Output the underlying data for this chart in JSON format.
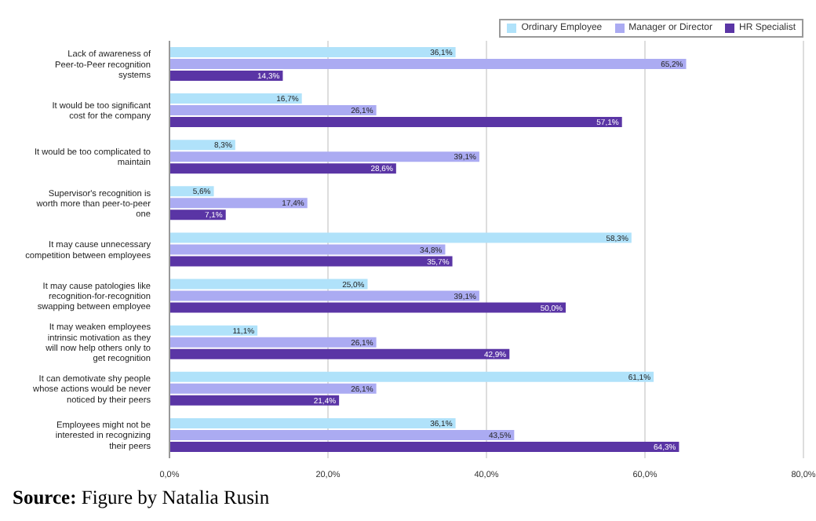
{
  "chart_data": {
    "type": "bar",
    "orientation": "horizontal",
    "categories": [
      "Lack of awareness of Peer-to-Peer recognition systems",
      "It would be too significant cost for the company",
      "It would be too complicated to maintain",
      "Supervisor's recognition is worth more than peer-to-peer one",
      "It may cause unnecessary competition between employees",
      "It may cause patologies like recognition-for-recognition swapping between employee",
      "It may weaken employees intrinsic motivation as they will now help others only to get recognition",
      "It can demotivate shy people whose actions would be never noticed by their peers",
      "Employees might not be interested in recognizing their peers"
    ],
    "series": [
      {
        "name": "Ordinary Employee",
        "color": "#b0e2fa",
        "values": [
          36.1,
          16.7,
          8.3,
          5.6,
          58.3,
          25.0,
          11.1,
          61.1,
          36.1
        ],
        "value_labels": [
          "36,1%",
          "16,7%",
          "8,3%",
          "5,6%",
          "58,3%",
          "25,0%",
          "11,1%",
          "61,1%",
          "36,1%"
        ]
      },
      {
        "name": "Manager or Director",
        "color": "#ababf2",
        "values": [
          65.2,
          26.1,
          39.1,
          17.4,
          34.8,
          39.1,
          26.1,
          26.1,
          43.5
        ],
        "value_labels": [
          "65,2%",
          "26,1%",
          "39,1%",
          "17,4%",
          "34,8%",
          "39,1%",
          "26,1%",
          "26,1%",
          "43,5%"
        ]
      },
      {
        "name": "HR Specialist",
        "color": "#5a35a5",
        "values": [
          14.3,
          57.1,
          28.6,
          7.1,
          35.7,
          50.0,
          42.9,
          21.4,
          64.3
        ],
        "value_labels": [
          "14,3%",
          "57,1%",
          "28,6%",
          "7,1%",
          "35,7%",
          "50,0%",
          "42,9%",
          "21,4%",
          "64,3%"
        ]
      }
    ],
    "xlim": [
      0,
      80
    ],
    "xticks": [
      {
        "value": 0,
        "label": "0,0%"
      },
      {
        "value": 20,
        "label": "20,0%"
      },
      {
        "value": 40,
        "label": "40,0%"
      },
      {
        "value": 60,
        "label": "60,0%"
      },
      {
        "value": 80,
        "label": "80,0%"
      }
    ],
    "grid": "x",
    "legend": "top right",
    "annotations": [
      "Source: Figure by Natalia Rusin"
    ]
  }
}
